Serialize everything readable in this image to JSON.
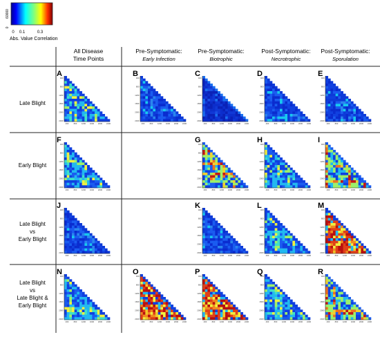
{
  "legend": {
    "axis_label": "60000",
    "zero_label": "0",
    "tick_labels": [
      "0",
      "0.1",
      "0.3"
    ],
    "caption": "Abs. Value Correlation"
  },
  "column_headers": [
    {
      "line1": "All Disease",
      "line2": "Time Points",
      "italic": false
    },
    {
      "line1": "Pre-Symptomatic:",
      "line2": "Early Infection",
      "italic": true
    },
    {
      "line1": "Pre-Symptomatic:",
      "line2": "Biotrophic",
      "italic": true
    },
    {
      "line1": "Post-Symptomatic:",
      "line2": "Necrotrophic",
      "italic": true
    },
    {
      "line1": "Post-Symptomatic:",
      "line2": "Sporulation",
      "italic": true
    }
  ],
  "row_labels": [
    {
      "lines": [
        "Late Blight"
      ]
    },
    {
      "lines": [
        "Early Blight"
      ]
    },
    {
      "lines": [
        "Late Blight",
        "vs",
        "Early Blight"
      ]
    },
    {
      "lines": [
        "Late Blight",
        "vs",
        "Late Blight &",
        "Early Blight"
      ]
    }
  ],
  "heatmap_axis_ticks": {
    "y": [
      "400",
      "800",
      "1200",
      "1600",
      "2000",
      "2400"
    ],
    "x": [
      "400",
      "800",
      "1200",
      "1600",
      "2000",
      "2400"
    ]
  },
  "panels": [
    {
      "letter": "A",
      "row": 0,
      "col": 0,
      "theme": "mixed"
    },
    {
      "letter": "B",
      "row": 0,
      "col": 1,
      "theme": "blue"
    },
    {
      "letter": "C",
      "row": 0,
      "col": 2,
      "theme": "deepblue"
    },
    {
      "letter": "D",
      "row": 0,
      "col": 3,
      "theme": "blue"
    },
    {
      "letter": "E",
      "row": 0,
      "col": 4,
      "theme": "blue"
    },
    {
      "letter": "F",
      "row": 1,
      "col": 0,
      "theme": "mixed"
    },
    {
      "letter": "G",
      "row": 1,
      "col": 2,
      "theme": "warm"
    },
    {
      "letter": "H",
      "row": 1,
      "col": 3,
      "theme": "mixed"
    },
    {
      "letter": "I",
      "row": 1,
      "col": 4,
      "theme": "warm"
    },
    {
      "letter": "J",
      "row": 2,
      "col": 0,
      "theme": "blue"
    },
    {
      "letter": "K",
      "row": 2,
      "col": 2,
      "theme": "blue"
    },
    {
      "letter": "L",
      "row": 2,
      "col": 3,
      "theme": "mixed"
    },
    {
      "letter": "M",
      "row": 2,
      "col": 4,
      "theme": "hot"
    },
    {
      "letter": "N",
      "row": 3,
      "col": 0,
      "theme": "mixed"
    },
    {
      "letter": "O",
      "row": 3,
      "col": 1,
      "theme": "hot"
    },
    {
      "letter": "P",
      "row": 3,
      "col": 2,
      "theme": "hot"
    },
    {
      "letter": "Q",
      "row": 3,
      "col": 3,
      "theme": "mixed"
    },
    {
      "letter": "R",
      "row": 3,
      "col": 4,
      "theme": "warm"
    }
  ]
}
